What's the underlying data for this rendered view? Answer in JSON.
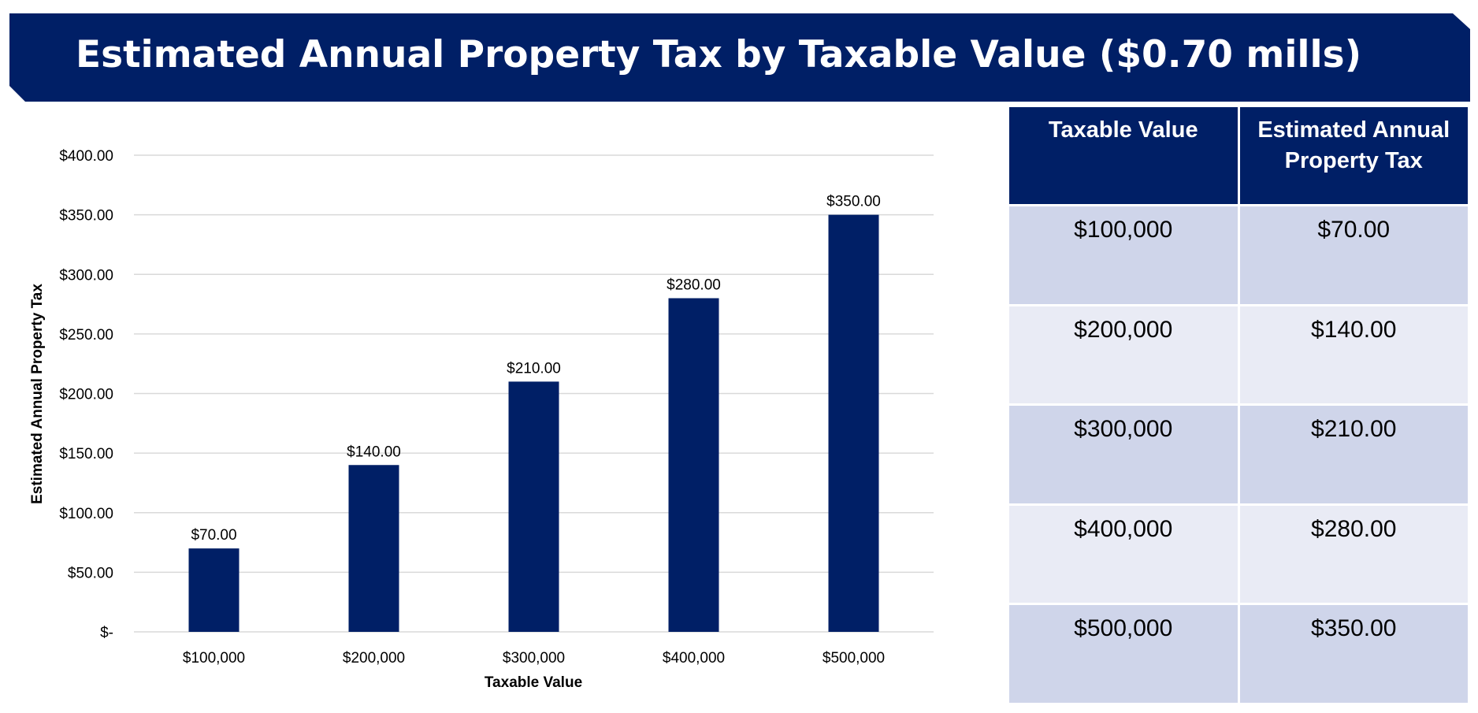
{
  "title": "Estimated Annual Property Tax by Taxable Value ($0.70 mills)",
  "colors": {
    "navy": "#001f66",
    "row_odd": "#cfd5ea",
    "row_even": "#e9ebf5",
    "grid": "#d9d9d9"
  },
  "chart_data": {
    "type": "bar",
    "title": "",
    "xlabel": "Taxable Value",
    "ylabel": "Estimated Annual Property Tax",
    "categories": [
      "$100,000",
      "$200,000",
      "$300,000",
      "$400,000",
      "$500,000"
    ],
    "values": [
      70,
      140,
      210,
      280,
      350
    ],
    "data_labels": [
      "$70.00",
      "$140.00",
      "$210.00",
      "$280.00",
      "$350.00"
    ],
    "ylim": [
      0,
      400
    ],
    "yticks": [
      0,
      50,
      100,
      150,
      200,
      250,
      300,
      350,
      400
    ],
    "ytick_labels": [
      "$-",
      "$50.00",
      "$100.00",
      "$150.00",
      "$200.00",
      "$250.00",
      "$300.00",
      "$350.00",
      "$400.00"
    ],
    "grid": true,
    "legend": "none"
  },
  "table": {
    "headers": [
      "Taxable Value",
      "Estimated Annual Property Tax"
    ],
    "rows": [
      [
        "$100,000",
        "$70.00"
      ],
      [
        "$200,000",
        "$140.00"
      ],
      [
        "$300,000",
        "$210.00"
      ],
      [
        "$400,000",
        "$280.00"
      ],
      [
        "$500,000",
        "$350.00"
      ]
    ]
  }
}
